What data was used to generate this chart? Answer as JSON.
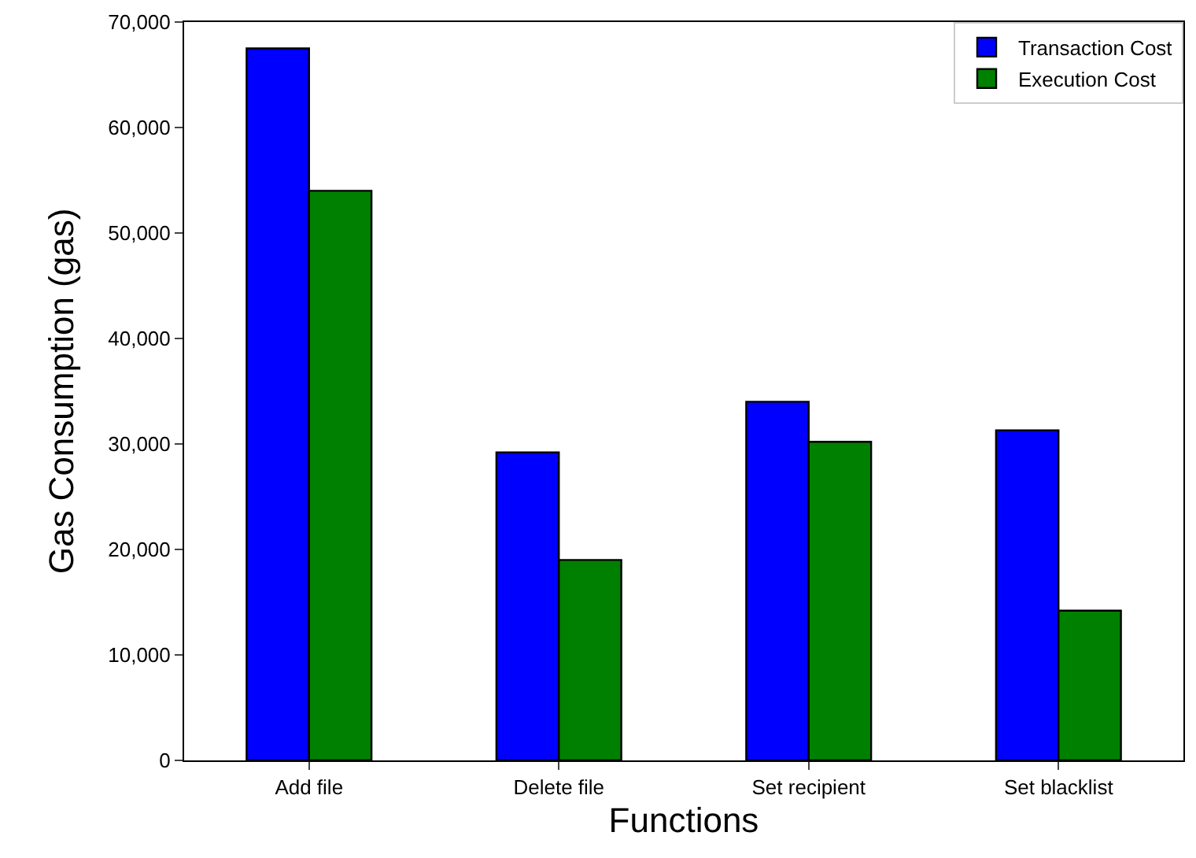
{
  "chart_data": {
    "type": "bar",
    "xlabel": "Functions",
    "ylabel": "Gas Consumption (gas)",
    "categories": [
      "Add file",
      "Delete file",
      "Set recipient",
      "Set blacklist"
    ],
    "series": [
      {
        "name": "Transaction Cost",
        "color": "#0000ff",
        "values": [
          67500,
          29200,
          34000,
          31300
        ]
      },
      {
        "name": "Execution Cost",
        "color": "#008000",
        "values": [
          54000,
          19000,
          30200,
          14200
        ]
      }
    ],
    "ylim": [
      0,
      70000
    ],
    "yticks": [
      {
        "value": 0,
        "label": "0"
      },
      {
        "value": 10000,
        "label": "10,000"
      },
      {
        "value": 20000,
        "label": "20,000"
      },
      {
        "value": 30000,
        "label": "30,000"
      },
      {
        "value": 40000,
        "label": "40,000"
      },
      {
        "value": 50000,
        "label": "50,000"
      },
      {
        "value": 60000,
        "label": "60,000"
      },
      {
        "value": 70000,
        "label": "70,000"
      }
    ],
    "legend": "top right"
  }
}
